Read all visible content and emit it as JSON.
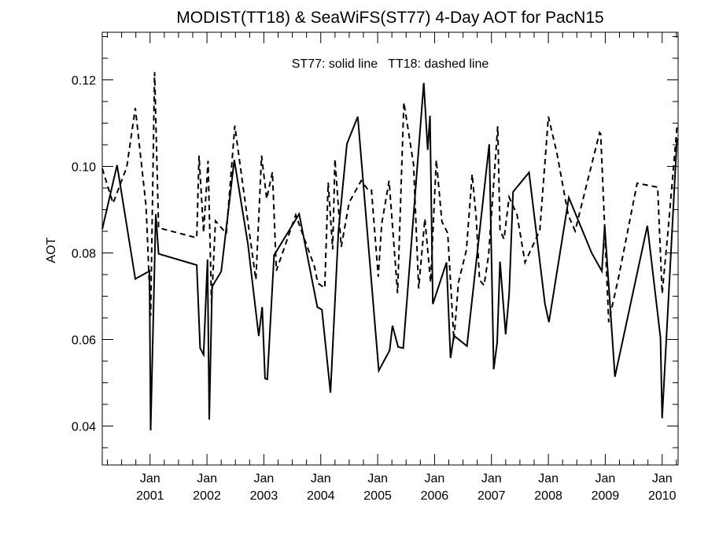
{
  "chart_data": {
    "type": "line",
    "title": "MODIST(TT18) & SeaWiFS(ST77) 4-Day AOT for PacN15",
    "annotation": "ST77: solid line   TT18: dashed line",
    "xlabel": "",
    "ylabel": "AOT",
    "ylim": [
      0.031,
      0.131
    ],
    "y_ticks": [
      0.04,
      0.06,
      0.08,
      0.1,
      0.12
    ],
    "y_tick_labels": [
      "0.04",
      "0.06",
      "0.08",
      "0.10",
      "0.12"
    ],
    "xlim": [
      1999.98,
      2010.1
    ],
    "x_ticks": [
      {
        "x": 2000.82,
        "month": "Jan",
        "year": "2001"
      },
      {
        "x": 2001.82,
        "month": "Jan",
        "year": "2002"
      },
      {
        "x": 2002.82,
        "month": "Jan",
        "year": "2003"
      },
      {
        "x": 2003.82,
        "month": "Jan",
        "year": "2004"
      },
      {
        "x": 2004.82,
        "month": "Jan",
        "year": "2005"
      },
      {
        "x": 2005.82,
        "month": "Jan",
        "year": "2006"
      },
      {
        "x": 2006.82,
        "month": "Jan",
        "year": "2007"
      },
      {
        "x": 2007.82,
        "month": "Jan",
        "year": "2008"
      },
      {
        "x": 2008.82,
        "month": "Jan",
        "year": "2009"
      },
      {
        "x": 2009.82,
        "month": "Jan",
        "year": "2010"
      }
    ],
    "x_minor_step": 0.25,
    "grid": false,
    "series": [
      {
        "name": "ST77",
        "style": "solid",
        "color": "#000000",
        "x": [
          1999.98,
          2000.24,
          2000.56,
          2000.81,
          2000.83,
          2000.92,
          2000.97,
          2001.64,
          2001.7,
          2001.76,
          2001.83,
          2001.86,
          2001.91,
          2002.07,
          2002.3,
          2002.54,
          2002.73,
          2002.79,
          2002.84,
          2002.88,
          2003.0,
          2003.44,
          2003.76,
          2003.84,
          2003.99,
          2004.13,
          2004.28,
          2004.47,
          2004.84,
          2005.03,
          2005.08,
          2005.18,
          2005.27,
          2005.63,
          2005.7,
          2005.74,
          2005.79,
          2006.03,
          2006.1,
          2006.16,
          2006.39,
          2006.78,
          2006.86,
          2006.92,
          2006.97,
          2007.07,
          2007.13,
          2007.2,
          2007.48,
          2007.76,
          2007.83,
          2008.18,
          2008.58,
          2008.76,
          2008.81,
          2008.99,
          2009.56,
          2009.79,
          2009.82,
          2010.08
        ],
        "y": [
          0.0855,
          0.1003,
          0.074,
          0.0758,
          0.039,
          0.089,
          0.0798,
          0.0772,
          0.058,
          0.0565,
          0.0785,
          0.0415,
          0.0722,
          0.0757,
          0.1015,
          0.082,
          0.0608,
          0.0675,
          0.051,
          0.0508,
          0.0795,
          0.089,
          0.0675,
          0.0669,
          0.0477,
          0.085,
          0.1052,
          0.1115,
          0.0528,
          0.0575,
          0.0632,
          0.0583,
          0.058,
          0.1193,
          0.1038,
          0.1117,
          0.0682,
          0.0778,
          0.0557,
          0.0609,
          0.0585,
          0.1051,
          0.0531,
          0.0593,
          0.078,
          0.0612,
          0.0704,
          0.0941,
          0.0986,
          0.0683,
          0.064,
          0.0928,
          0.08,
          0.0758,
          0.0862,
          0.0514,
          0.0863,
          0.0604,
          0.0418,
          0.1065
        ]
      },
      {
        "name": "TT18",
        "style": "dashed",
        "color": "#000000",
        "x": [
          1999.98,
          2000.17,
          2000.41,
          2000.56,
          2000.75,
          2000.83,
          2000.9,
          2000.97,
          2001.64,
          2001.68,
          2001.76,
          2001.84,
          2001.9,
          2001.97,
          2002.16,
          2002.31,
          2002.45,
          2002.68,
          2002.78,
          2002.87,
          2002.97,
          2003.04,
          2003.38,
          2003.71,
          2003.77,
          2003.89,
          2003.95,
          2004.03,
          2004.07,
          2004.18,
          2004.32,
          2004.53,
          2004.64,
          2004.71,
          2004.83,
          2004.89,
          2005.02,
          2005.17,
          2005.28,
          2005.45,
          2005.54,
          2005.65,
          2005.75,
          2005.85,
          2005.95,
          2006.05,
          2006.16,
          2006.24,
          2006.38,
          2006.48,
          2006.55,
          2006.61,
          2006.69,
          2006.77,
          2006.93,
          2006.97,
          2007.04,
          2007.13,
          2007.27,
          2007.41,
          2007.67,
          2007.82,
          2007.97,
          2008.17,
          2008.29,
          2008.72,
          2008.74,
          2008.88,
          2009.06,
          2009.38,
          2009.74,
          2009.82,
          2009.92,
          2010.08
        ],
        "y": [
          0.0995,
          0.0915,
          0.0998,
          0.1135,
          0.0908,
          0.0655,
          0.1218,
          0.0858,
          0.0835,
          0.1025,
          0.0847,
          0.1013,
          0.0683,
          0.0874,
          0.0845,
          0.1094,
          0.0957,
          0.0738,
          0.1025,
          0.0925,
          0.0987,
          0.0759,
          0.0888,
          0.0768,
          0.073,
          0.0719,
          0.0963,
          0.0808,
          0.1017,
          0.0814,
          0.0917,
          0.0967,
          0.0948,
          0.0948,
          0.0745,
          0.0867,
          0.0967,
          0.0707,
          0.1148,
          0.1005,
          0.0718,
          0.0879,
          0.0732,
          0.1015,
          0.0872,
          0.0846,
          0.0599,
          0.0732,
          0.0807,
          0.0982,
          0.0885,
          0.0738,
          0.0725,
          0.0795,
          0.1093,
          0.0852,
          0.0832,
          0.0929,
          0.0888,
          0.0778,
          0.0852,
          0.1115,
          0.1031,
          0.0887,
          0.0851,
          0.1078,
          0.1075,
          0.064,
          0.0748,
          0.0961,
          0.0952,
          0.0706,
          0.0847,
          0.1091
        ]
      }
    ]
  }
}
